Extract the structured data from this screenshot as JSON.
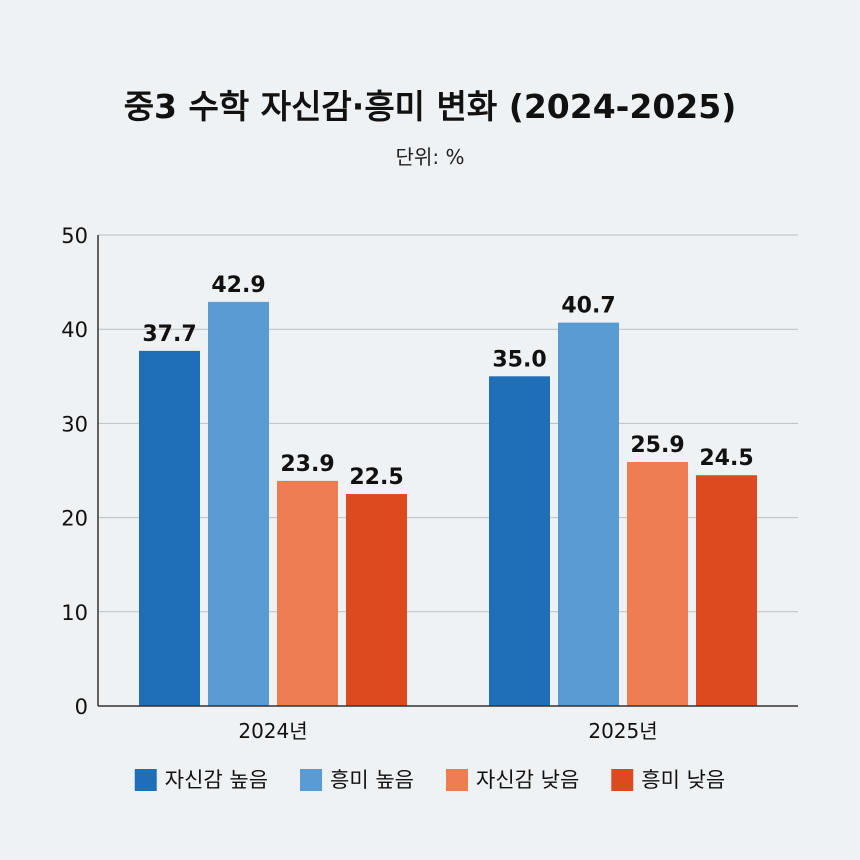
{
  "chart_data": {
    "type": "bar",
    "title": "중3 수학 자신감·흥미 변화 (2024-2025)",
    "subtitle": "단위: %",
    "categories": [
      "2024년",
      "2025년"
    ],
    "series": [
      {
        "name": "자신감 높음",
        "values": [
          37.7,
          35.0
        ],
        "labels": [
          "37.7",
          "35.0"
        ],
        "color": "#1f6fb6"
      },
      {
        "name": "흥미 높음",
        "values": [
          42.9,
          40.7
        ],
        "labels": [
          "42.9",
          "40.7"
        ],
        "color": "#5b9bd3"
      },
      {
        "name": "자신감 낮음",
        "values": [
          23.9,
          25.9
        ],
        "labels": [
          "23.9",
          "25.9"
        ],
        "color": "#ef7d52"
      },
      {
        "name": "흥미 낮음",
        "values": [
          22.5,
          24.5
        ],
        "labels": [
          "22.5",
          "24.5"
        ],
        "color": "#dc4a20"
      }
    ],
    "ylim": [
      0,
      50
    ],
    "yticks": [
      "0",
      "10",
      "20",
      "30",
      "40",
      "50"
    ],
    "grid": true,
    "legend_position": "bottom"
  }
}
